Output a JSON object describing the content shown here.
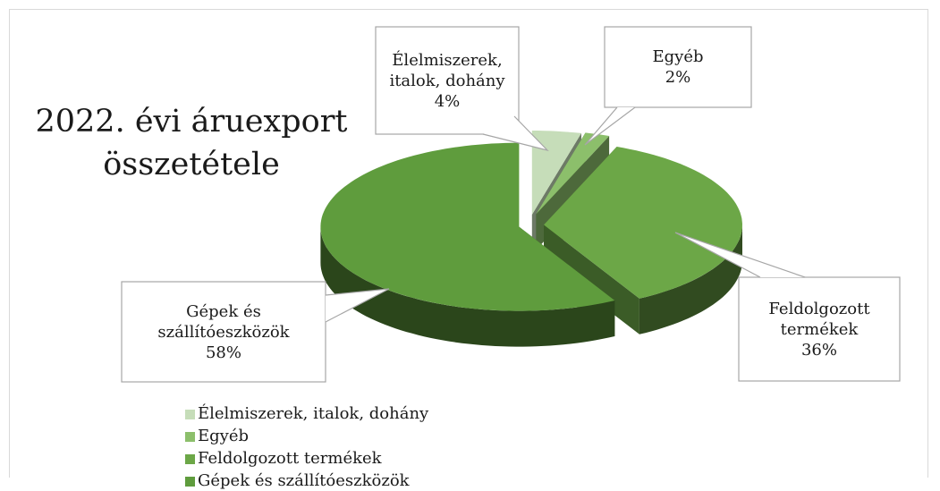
{
  "chart_data": {
    "type": "pie",
    "title": "2022. évi áruexport összetétele",
    "categories": [
      "Élelmiszerek, italok, dohány",
      "Egyéb",
      "Feldolgozott termékek",
      "Gépek és szállítóeszközök"
    ],
    "values": [
      4,
      2,
      36,
      58
    ],
    "value_labels": [
      "4%",
      "2%",
      "36%",
      "58%"
    ],
    "colors": [
      "#c6ddb9",
      "#8cbf6b",
      "#6ca747",
      "#5f9c3d"
    ],
    "legend": true
  }
}
